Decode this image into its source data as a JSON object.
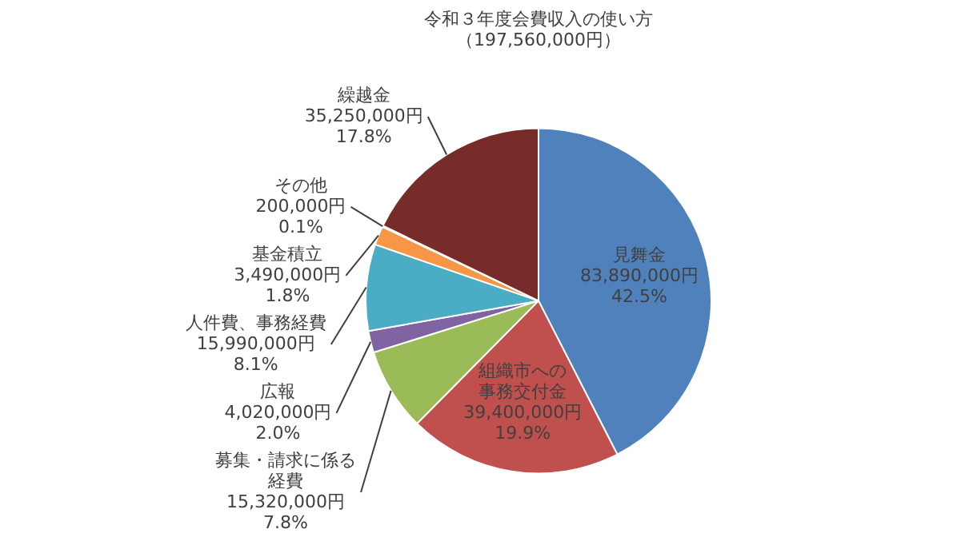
{
  "chart_data": {
    "type": "pie",
    "title": "令和３年度会費収入の使い方",
    "subtitle": "（197,560,000円）",
    "categories": [
      "見舞金",
      "組織市への事務交付金",
      "募集・請求に係る経費",
      "広報",
      "人件費、事務経費",
      "基金積立",
      "その他",
      "繰越金"
    ],
    "values": [
      83890000,
      39400000,
      15320000,
      4020000,
      15990000,
      3490000,
      200000,
      35250000
    ],
    "colors": [
      "#4f81bd",
      "#c0504d",
      "#9bbb59",
      "#8064a2",
      "#4bacc6",
      "#f79646",
      "#2c4d75",
      "#772c2a"
    ],
    "value_labels": [
      "83,890,000円\n42.5%",
      "39,400,000円\n19.9%",
      "15,320,000円\n7.8%",
      "4,020,000円\n2.0%",
      "15,990,000円\n8.1%",
      "3,490,000円\n1.8%",
      "200,000円\n0.1%",
      "35,250,000円\n17.8%"
    ],
    "legend": false
  }
}
